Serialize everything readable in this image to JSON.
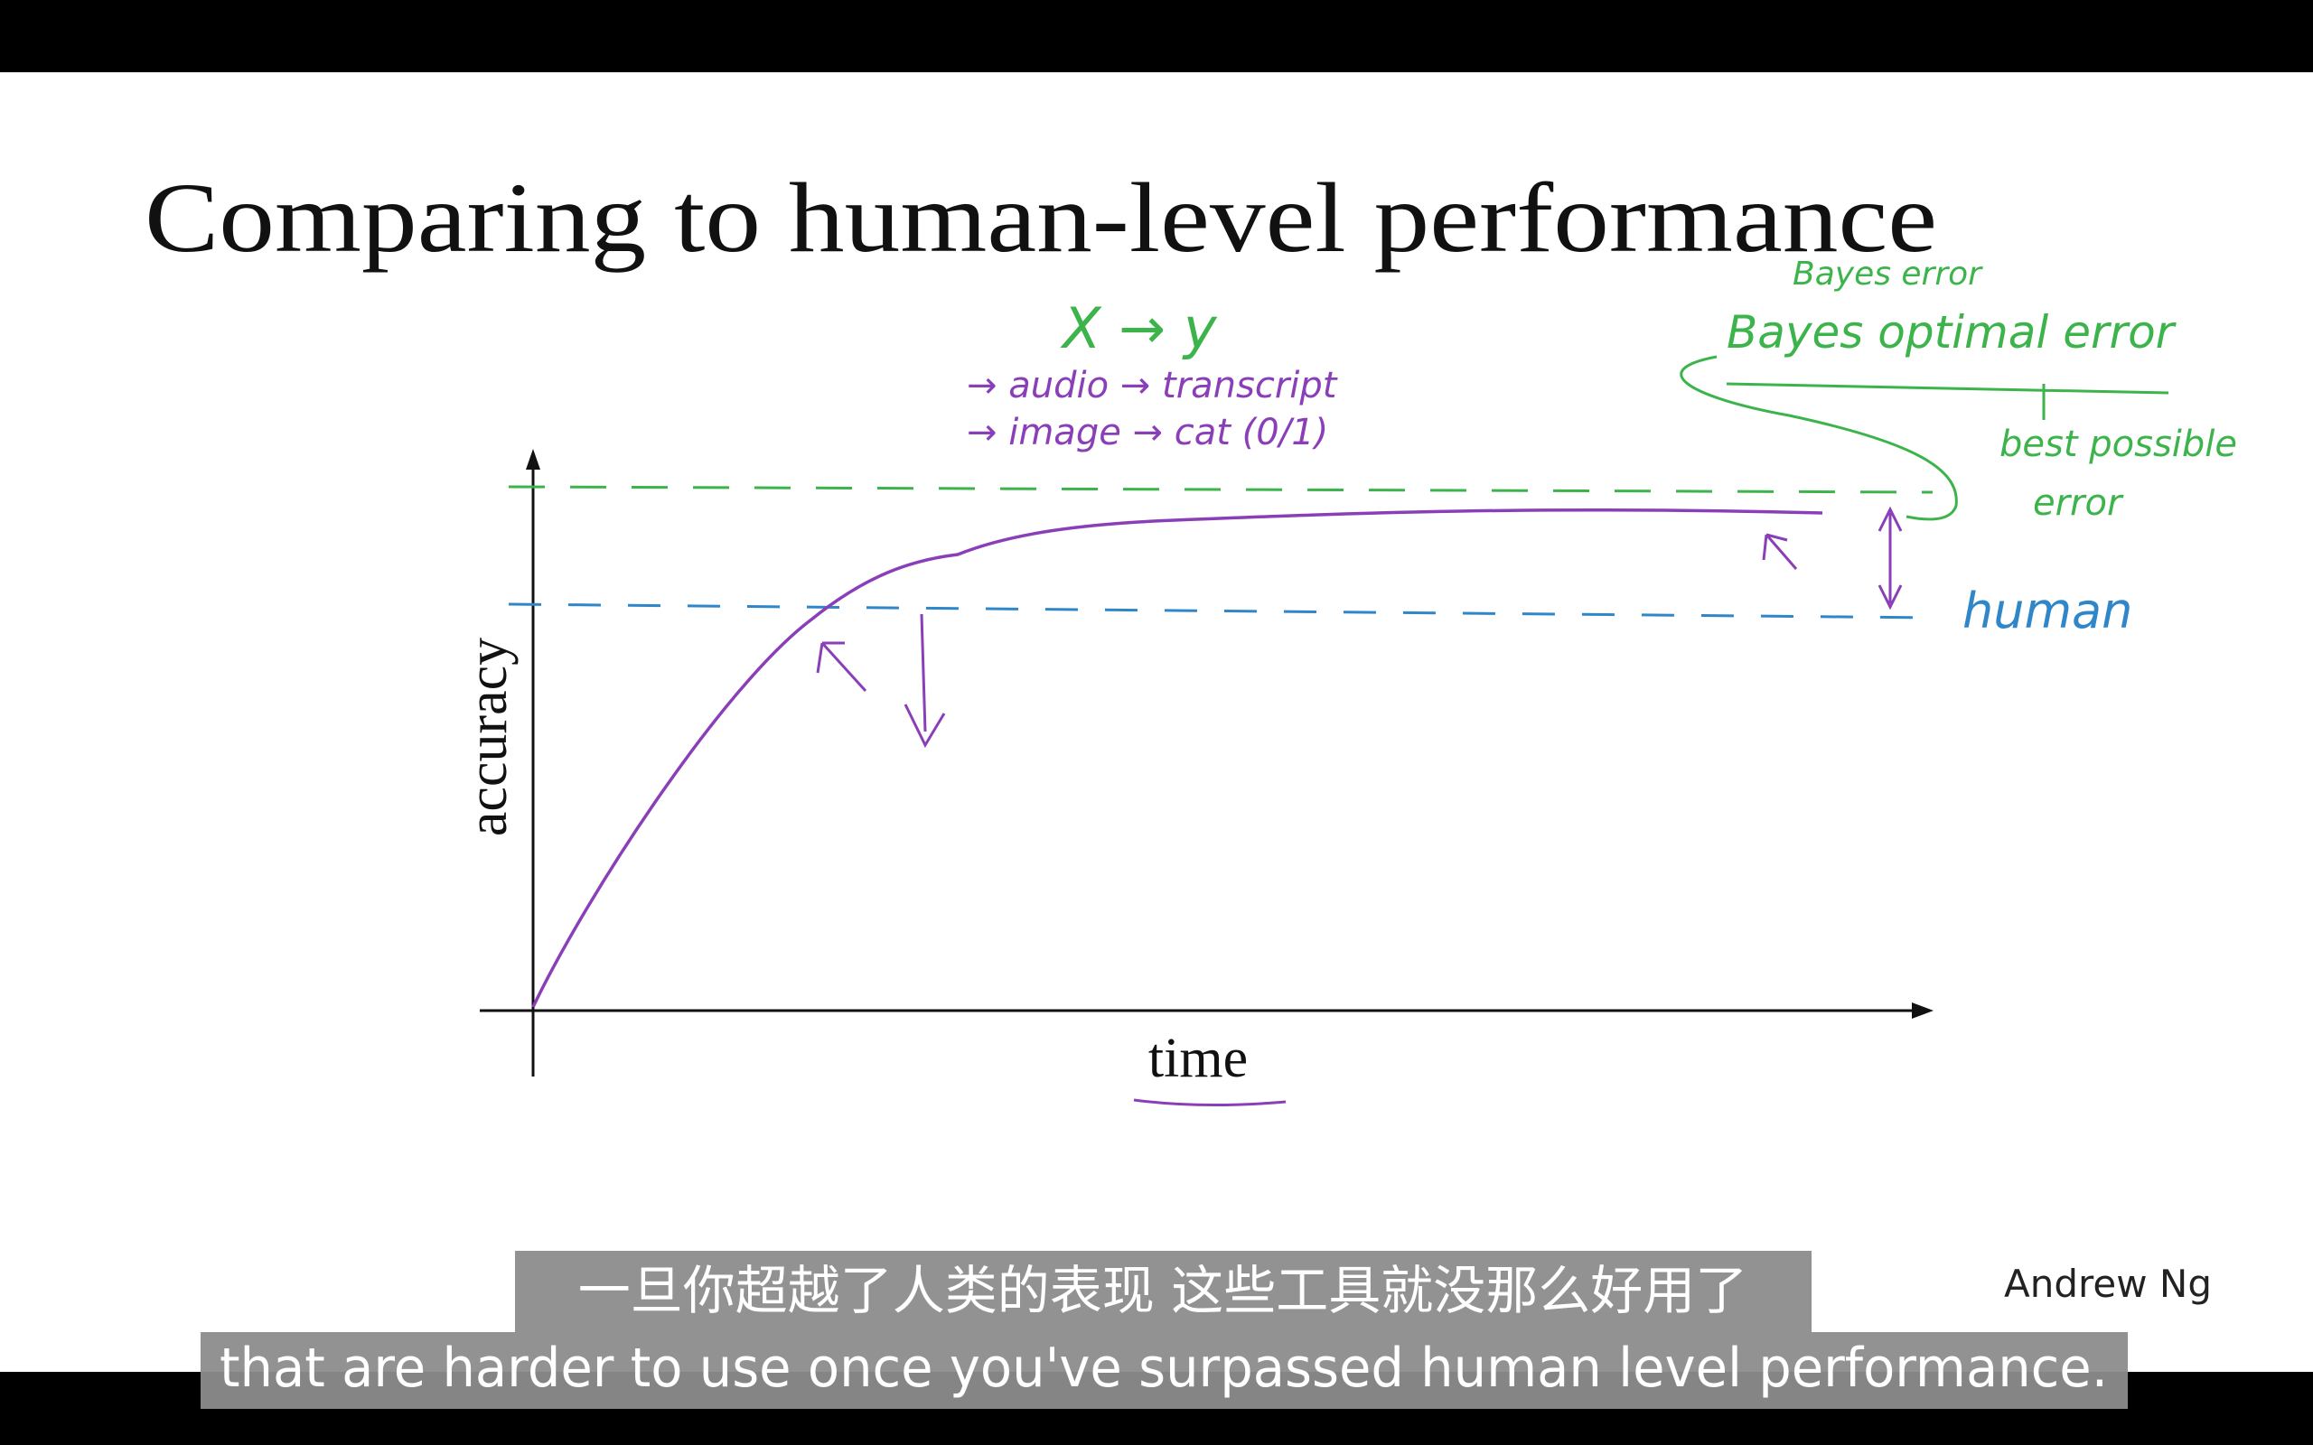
{
  "slide": {
    "title": "Comparing to human-level performance",
    "y_axis_label": "accuracy",
    "x_axis_label": "time",
    "annotations": {
      "x_to_y": "X → y",
      "audio": "→ audio → transcript",
      "image": "→ image → cat (0/1)",
      "bayes_error": "Bayes error",
      "bayes_optimal": "Bayes optimal error",
      "best_possible": "best possible",
      "error": "error",
      "human": "human"
    },
    "author": "Andrew Ng"
  },
  "subtitles": {
    "chinese": "一旦你超越了人类的表现 这些工具就没那么好用了",
    "english": "that are harder to use once you've surpassed human level performance."
  }
}
